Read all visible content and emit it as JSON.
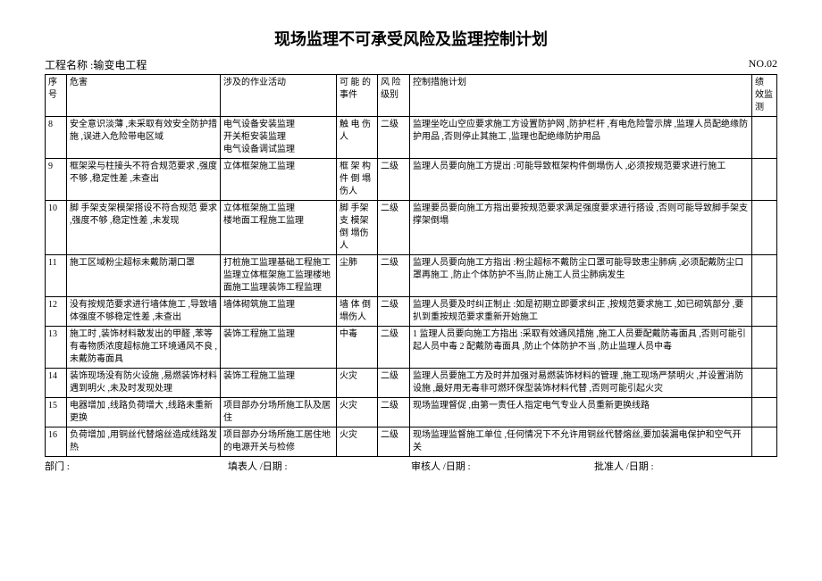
{
  "title": "现场监理不可承受风险及监理控制计划",
  "project_label": "工程名称 :",
  "project_name": "输变电工程",
  "doc_no": "NO.02",
  "columns": {
    "seq": "序号",
    "hazard": "危害",
    "activity": "涉及的作业活动",
    "event": "可 能 的事件",
    "level": "风 险级别",
    "measure": "控制措施计划",
    "perf": "绩 效监测"
  },
  "rows": [
    {
      "seq": "8",
      "hazard": "安全意识淡薄 ,未采取有效安全防护措施 ,误进入危险带电区域",
      "activity": "电气设备安装监理\n开关柜安装监理\n电气设备调试监理",
      "event": "触 电 伤人",
      "level": "二级",
      "measure": "监理坐吃山空应要求施工方设置防护网    ,防护栏杆 ,有电危险警示牌   ,监理人员配绝缘防护用品    ,否则停止其施工   ,监理也配绝缘防护用品",
      "perf": ""
    },
    {
      "seq": "9",
      "hazard": "框架梁与柱接头不符合规范要求       ,强度不够 ,稳定性差 ,未查出",
      "activity": "立体框架施工监理",
      "event": "框 架 构件 倒 塌伤人",
      "level": "二级",
      "measure": "监理人员要向施工方提出    :可能导致框架构件倒塌伤人    ,必须按规范要求进行施工",
      "perf": ""
    },
    {
      "seq": "10",
      "hazard": "脚   手架支架模架搭设不符合规范 要求 ,强度不够 ,稳定性差 ,未发现",
      "activity": "立体框架施工监理\n楼地面工程施工监理",
      "event": "脚     手架 支 模架 倒 塌伤人",
      "level": "二级",
      "measure": "监理要员要向施工方指出要按规范要求满足强度要求进行搭设 ,否则可能导致脚手架支撑架倒塌",
      "perf": ""
    },
    {
      "seq": "11",
      "hazard": "施工区域粉尘超标未戴防潮口罩",
      "activity": "打桩施工监理基础工程施工监理立体框架施工监理楼地面施工监理装饰工程监理",
      "event": "尘肺",
      "level": "二级",
      "measure": "监理人员要向施工方指出    :粉尘超标不戴防尘口罩可能导致患尘肺病 ,必须配戴防尘口罩再施工    ,防止个体防护不当,防止施工人员尘肺病发生",
      "perf": ""
    },
    {
      "seq": "12",
      "hazard": "没有按规范要求进行墙体施工    ,导致墙体强度不够稳定性差    ,未查出",
      "activity": "墙体砌筑施工监理",
      "event": "墙 体 倒塌伤人",
      "level": "二级",
      "measure": "监理人员要及时纠正制止    :如是初期立即要求纠正    ,按规范要求施工   ,如已砌筑部分   ,要扒到重按规范要求重新开始施工",
      "perf": ""
    },
    {
      "seq": "13",
      "hazard": "施工时 ,装饰材料散发出的甲醛    ,苯等有毒物质浓度超标施工环境通风不良 ,未戴防毒面具",
      "activity": "装饰工程施工监理",
      "event": "中毒",
      "level": "二级",
      "measure": "1  监理人员要向施工方指出   :采取有效通风措施  ,施工人员要配戴防毒面具 ,否则可能引起人员中毒    2 配戴防毒面具 ,防止个体防护不当 ,防止监理人员中毒",
      "perf": ""
    },
    {
      "seq": "14",
      "hazard": "装饰现场没有防火设施    ,易燃装饰材料遇到明火 ,未及时发现处理",
      "activity": "装饰工程施工监理",
      "event": "火灾",
      "level": "二级",
      "measure": "监理人员要施工方及时并加强对易燃装饰材料的管理       ,施工现场严禁明火    ,并设置消防设施  ,最好用无毒非可燃环保型装饰材料代替 ,否则可能引起火灾",
      "perf": ""
    },
    {
      "seq": "15",
      "hazard": "电器增加   ,线路负荷增大   ,线路未重新更换",
      "activity": "项目部办分场所施工队及居住",
      "event": "火灾",
      "level": "二级",
      "measure": "现场监理督促   ,由第一责任人指定电气专业人员重新更换线路",
      "perf": ""
    },
    {
      "seq": "16",
      "hazard": "负荷增加  ,用铜丝代替熔丝造成线路发热",
      "activity": "项目部办分场所施工居住地的电源开关与检修",
      "event": "火灾",
      "level": "二级",
      "measure": "现场监理监督施工单位    ,任何情况下不允许用铜丝代替熔丝,要加装漏电保护和空气开关",
      "perf": ""
    }
  ],
  "footer": {
    "dept": "部门 :",
    "filler": "填表人 /日期 :",
    "reviewer": "审核人 /日期 :",
    "approver": "批准人 /日期 :"
  }
}
